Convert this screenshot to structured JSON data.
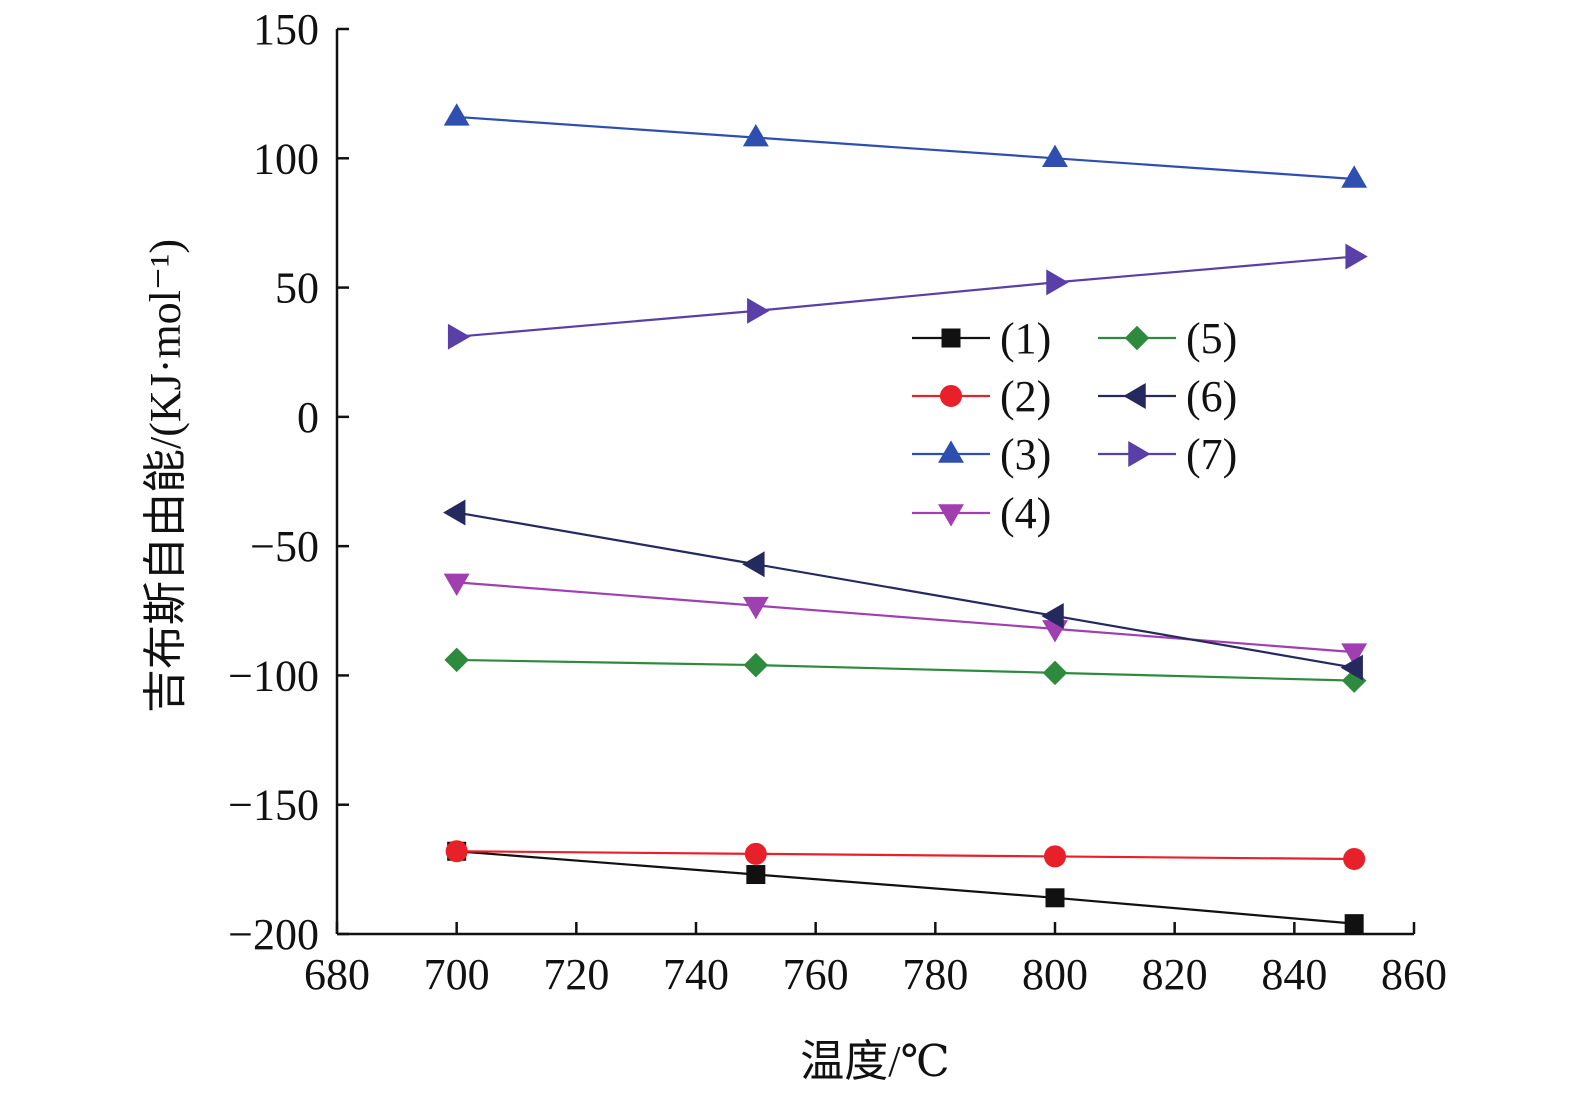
{
  "chart_data": {
    "type": "line",
    "title": "",
    "xlabel": "温度/℃",
    "ylabel": "吉布斯自由能/(KJ·mol⁻¹)",
    "xlim": [
      680,
      860
    ],
    "ylim": [
      -200,
      150
    ],
    "x_ticks": [
      680,
      700,
      720,
      740,
      760,
      780,
      800,
      820,
      840,
      860
    ],
    "y_ticks": [
      150,
      100,
      50,
      0,
      -50,
      -100,
      -150,
      -200
    ],
    "y_tick_labels": [
      "150",
      "100",
      "50",
      "0",
      "−50",
      "−100",
      "−150",
      "−200"
    ],
    "grid": false,
    "legend_position": "center-right",
    "x": [
      700,
      750,
      800,
      850
    ],
    "series": [
      {
        "name": "(1)",
        "color": "#111111",
        "marker": "square",
        "values": [
          -168,
          -177,
          -186,
          -196
        ]
      },
      {
        "name": "(2)",
        "color": "#e8202a",
        "marker": "circle",
        "values": [
          -168,
          -169,
          -170,
          -171
        ]
      },
      {
        "name": "(3)",
        "color": "#2f4fb0",
        "marker": "triangle-up",
        "values": [
          116,
          108,
          100,
          92
        ]
      },
      {
        "name": "(4)",
        "color": "#a040b0",
        "marker": "triangle-down",
        "values": [
          -64,
          -73,
          -82,
          -91
        ]
      },
      {
        "name": "(5)",
        "color": "#2e8b3e",
        "marker": "diamond",
        "values": [
          -94,
          -96,
          -99,
          -102
        ]
      },
      {
        "name": "(6)",
        "color": "#252a5e",
        "marker": "triangle-left",
        "values": [
          -37,
          -57,
          -77,
          -97
        ]
      },
      {
        "name": "(7)",
        "color": "#5a3fa8",
        "marker": "triangle-right",
        "values": [
          31,
          41,
          52,
          62
        ]
      }
    ]
  }
}
